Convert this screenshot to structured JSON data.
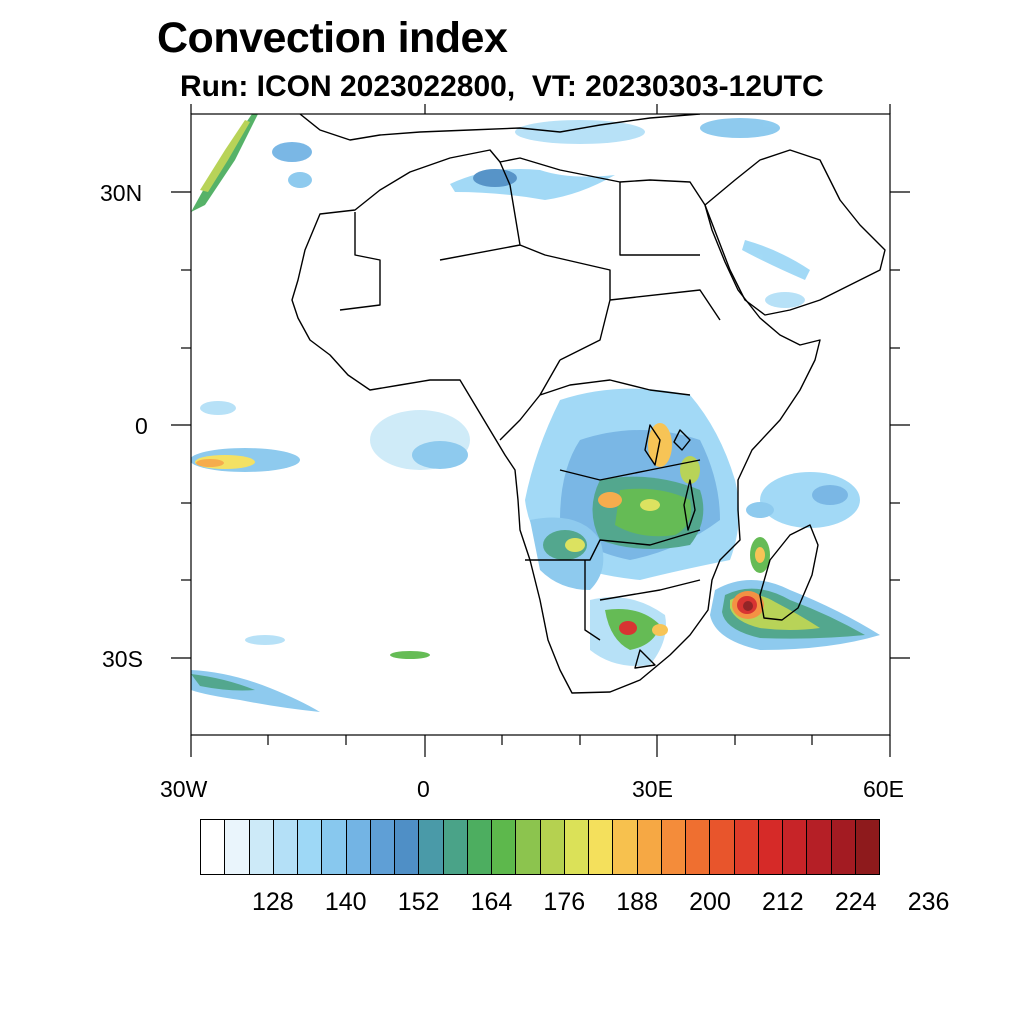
{
  "title": "Convection index",
  "subtitle": "Run: ICON 2023022800,  VT: 20230303-12UTC",
  "map": {
    "lat_labels": [
      "30N",
      "0",
      "30S"
    ],
    "lon_labels": [
      "30W",
      "0",
      "30E",
      "60E"
    ],
    "extent": {
      "lon_min": -30,
      "lon_max": 60,
      "lat_min": -40,
      "lat_max": 40
    },
    "coastline_color": "#000000"
  },
  "colorbar": {
    "colors": [
      "#ffffff",
      "#eaf5fc",
      "#cdeaf8",
      "#b4e0f7",
      "#9ed8f6",
      "#88c8ee",
      "#73b4e4",
      "#5f9fd6",
      "#4f8fc6",
      "#4a9aa8",
      "#4aa388",
      "#4dae60",
      "#5db84c",
      "#8cc44e",
      "#b5d150",
      "#dbe158",
      "#f4e05c",
      "#f7c14e",
      "#f6a844",
      "#f48c3a",
      "#ef6f30",
      "#e8552c",
      "#df3c2a",
      "#d62a28",
      "#c72428",
      "#b51f26",
      "#a31b22",
      "#8e1a1c"
    ],
    "tick_labels": [
      "128",
      "140",
      "152",
      "164",
      "176",
      "188",
      "200",
      "212",
      "224",
      "236"
    ]
  }
}
